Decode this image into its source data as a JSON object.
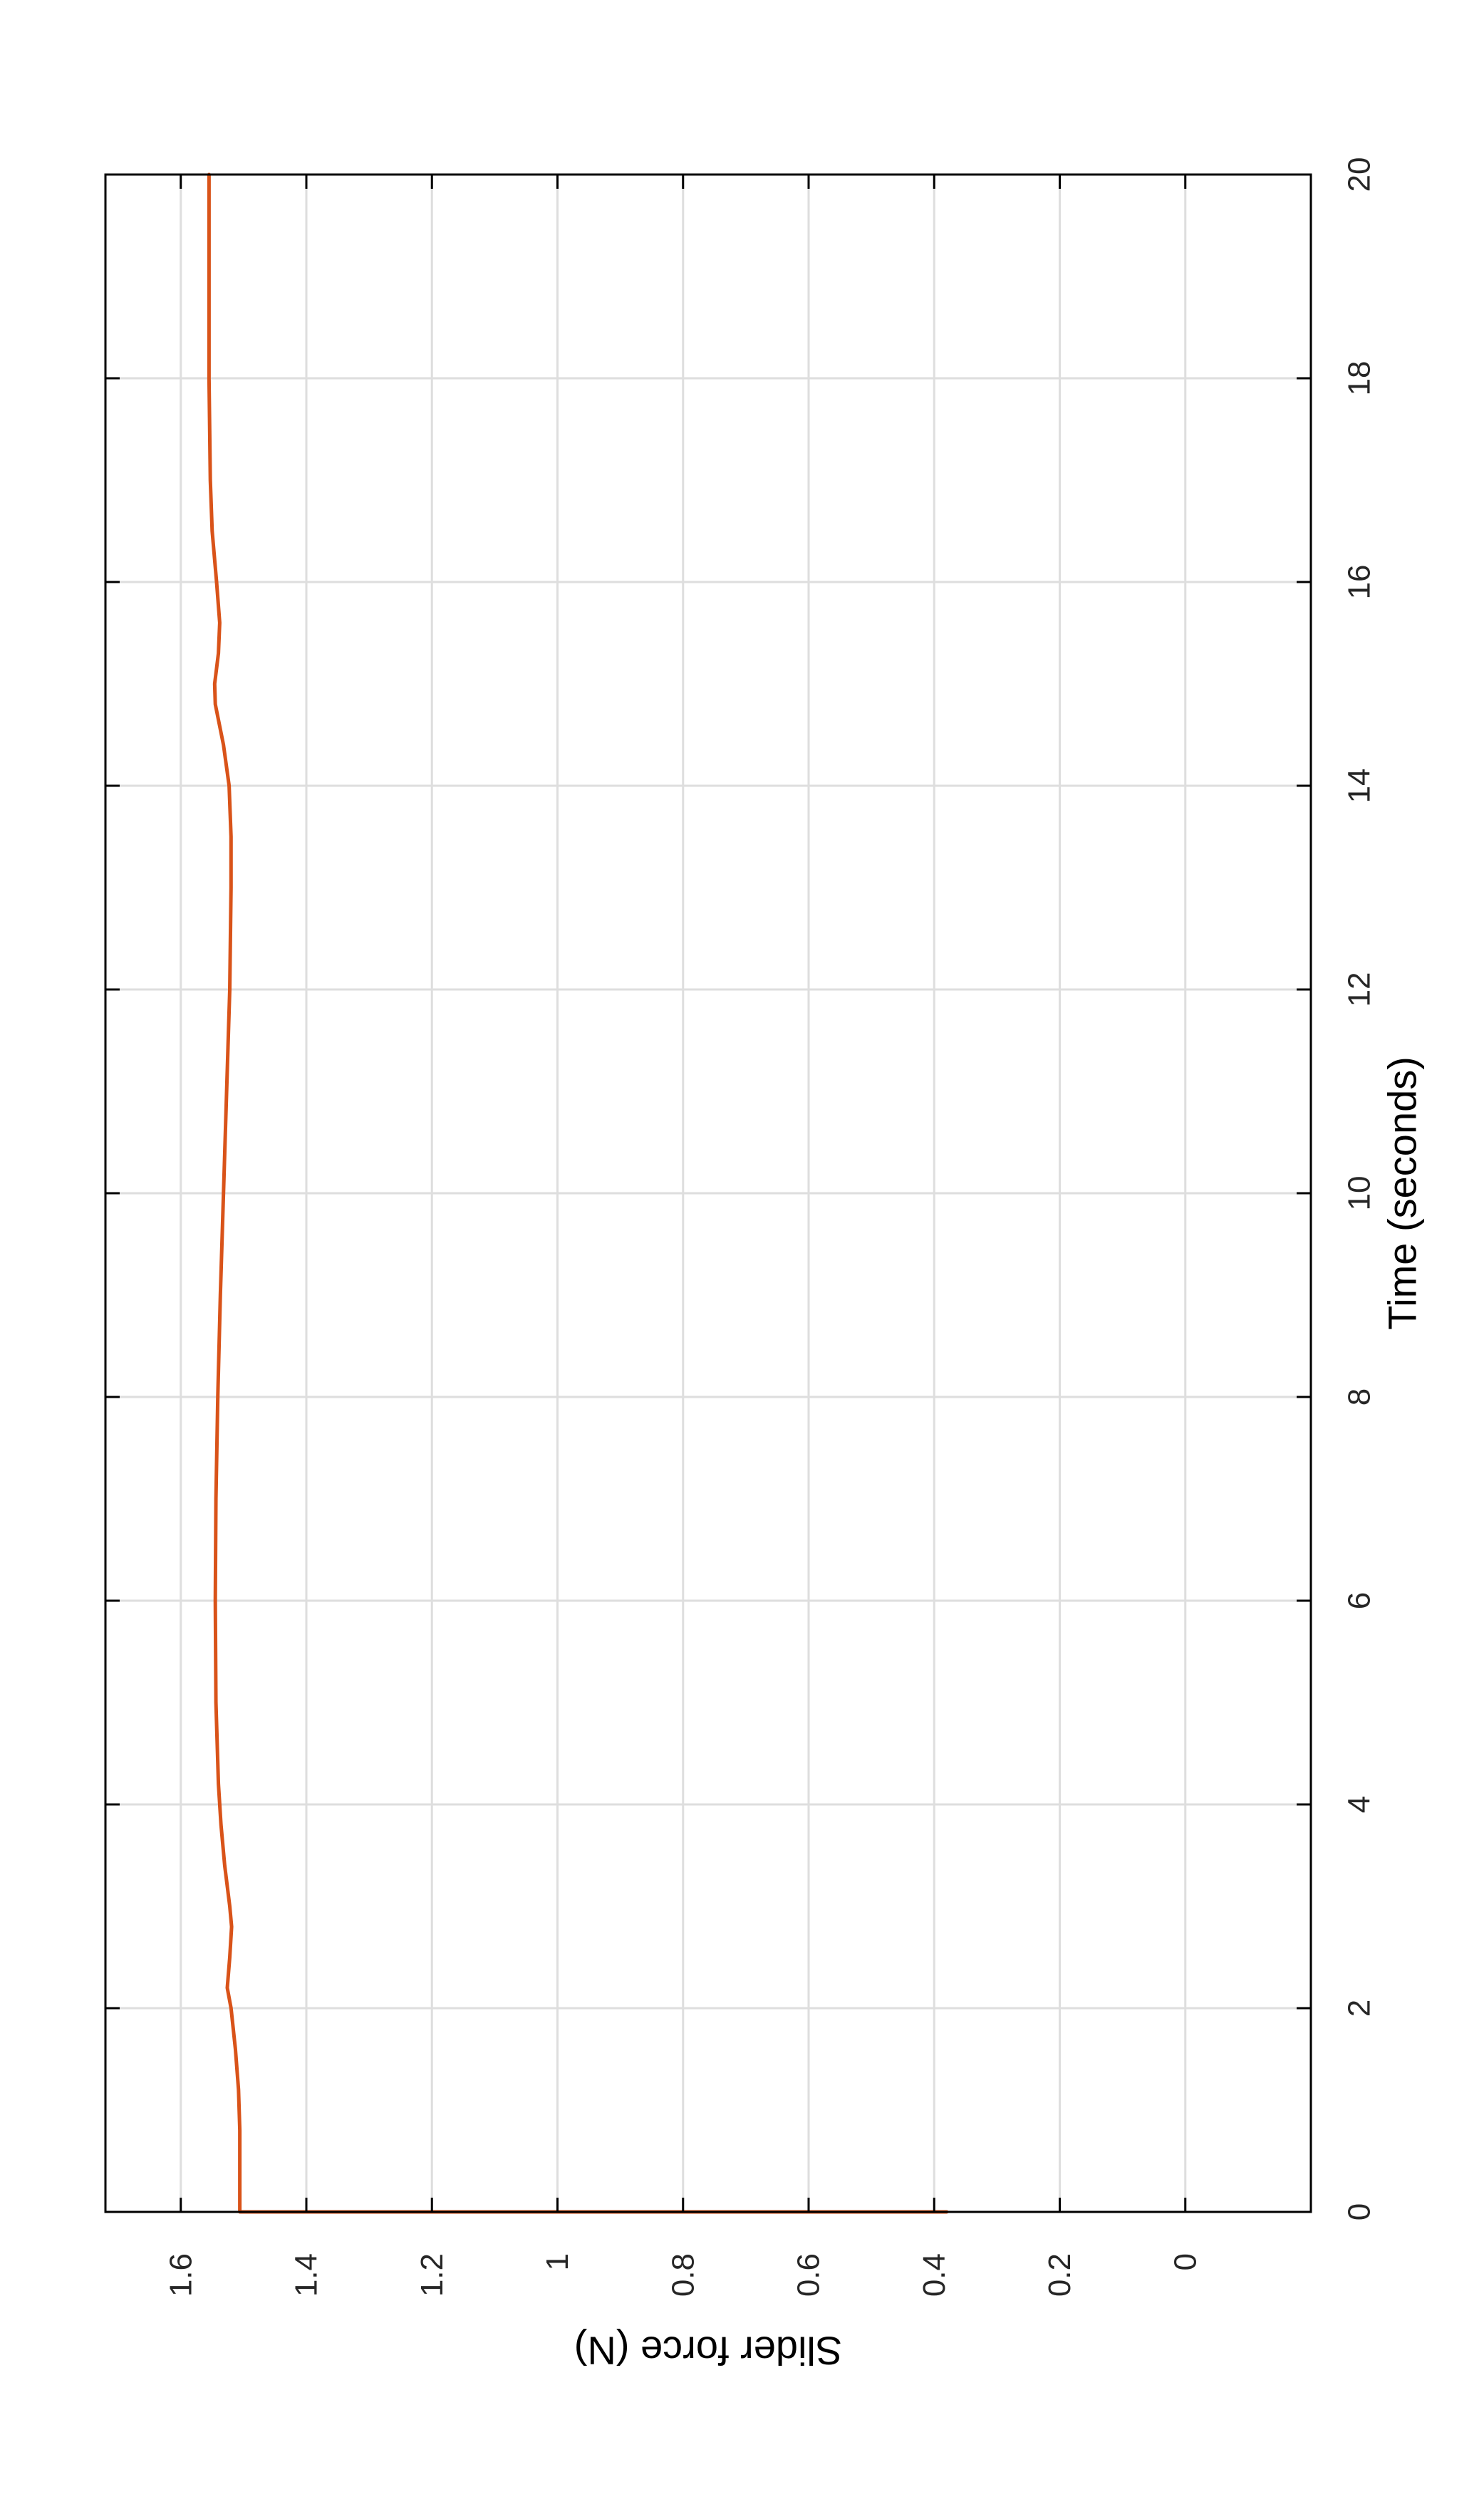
{
  "chart_data": {
    "type": "line",
    "title": "",
    "xlabel": "Time (seconds)",
    "ylabel": "Slider force (N)",
    "xlim": [
      0,
      20
    ],
    "ylim": [
      -0.2,
      1.72
    ],
    "xticks": [
      0,
      2,
      4,
      6,
      8,
      10,
      12,
      14,
      16,
      18,
      20
    ],
    "xtick_labels": [
      "0",
      "2",
      "4",
      "6",
      "8",
      "10",
      "12",
      "14",
      "16",
      "18",
      "20"
    ],
    "yticks": [
      0,
      0.2,
      0.4,
      0.6,
      0.8,
      1.0,
      1.2,
      1.4,
      1.6
    ],
    "ytick_labels": [
      "0",
      "0.2",
      "0.4",
      "0.6",
      "0.8",
      "1",
      "1.2",
      "1.4",
      "1.6"
    ],
    "grid": true,
    "orientation": "rotated 90 degrees clockwise",
    "series": [
      {
        "color": "#d95319",
        "x": [
          0,
          0,
          0.3,
          0.8,
          1.2,
          1.6,
          2.0,
          2.2,
          2.5,
          2.8,
          3.0,
          3.4,
          3.8,
          4.2,
          5.0,
          6.0,
          7.0,
          8.0,
          9.0,
          10.0,
          11.0,
          12.0,
          13.0,
          13.5,
          14.0,
          14.4,
          14.8,
          15.0,
          15.3,
          15.6,
          16.0,
          16.5,
          17.0,
          18.0,
          19.0,
          20.0
        ],
        "y": [
          0.38,
          1.506,
          1.506,
          1.506,
          1.508,
          1.513,
          1.52,
          1.526,
          1.522,
          1.519,
          1.522,
          1.53,
          1.536,
          1.54,
          1.544,
          1.545,
          1.544,
          1.541,
          1.537,
          1.532,
          1.527,
          1.522,
          1.52,
          1.52,
          1.523,
          1.532,
          1.545,
          1.546,
          1.54,
          1.538,
          1.543,
          1.55,
          1.553,
          1.555,
          1.555,
          1.555
        ]
      }
    ]
  }
}
